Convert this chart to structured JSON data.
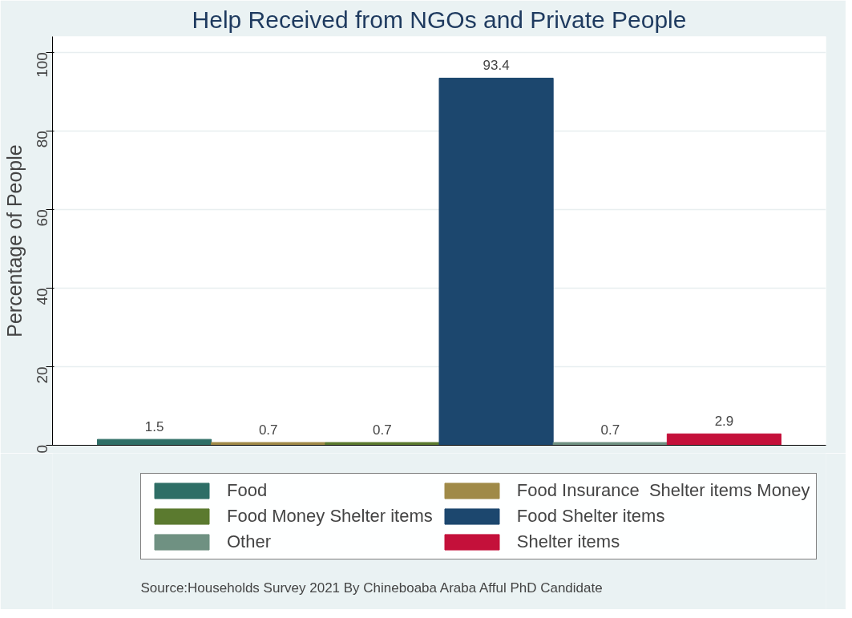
{
  "chart_data": {
    "type": "bar",
    "title": "Help Received from NGOs and Private People",
    "ylabel": "Percentage of People",
    "categories": [
      null
    ],
    "series": [
      {
        "name": "Food",
        "color": "#2e6e66",
        "values": [
          1.5
        ]
      },
      {
        "name": "Food Insurance  Shelter items Money",
        "color": "#a08a48",
        "values": [
          0.7
        ]
      },
      {
        "name": "Food Money Shelter items",
        "color": "#5b7a2f",
        "values": [
          0.7
        ]
      },
      {
        "name": "Food Shelter items",
        "color": "#1c476e",
        "values": [
          93.4
        ]
      },
      {
        "name": "Other",
        "color": "#6f9182",
        "values": [
          0.7
        ]
      },
      {
        "name": "Shelter items",
        "color": "#c4103a",
        "values": [
          2.9
        ]
      }
    ],
    "ylim": [
      0,
      104
    ],
    "yticks": [
      0,
      20,
      40,
      60,
      80,
      100
    ],
    "grid": "y",
    "legend": "bottom",
    "tick_labels": "y",
    "data_labels": true,
    "annotations": [
      "Source:Households Survey 2021 By Chineboaba Araba Afful PhD Candidate"
    ]
  }
}
